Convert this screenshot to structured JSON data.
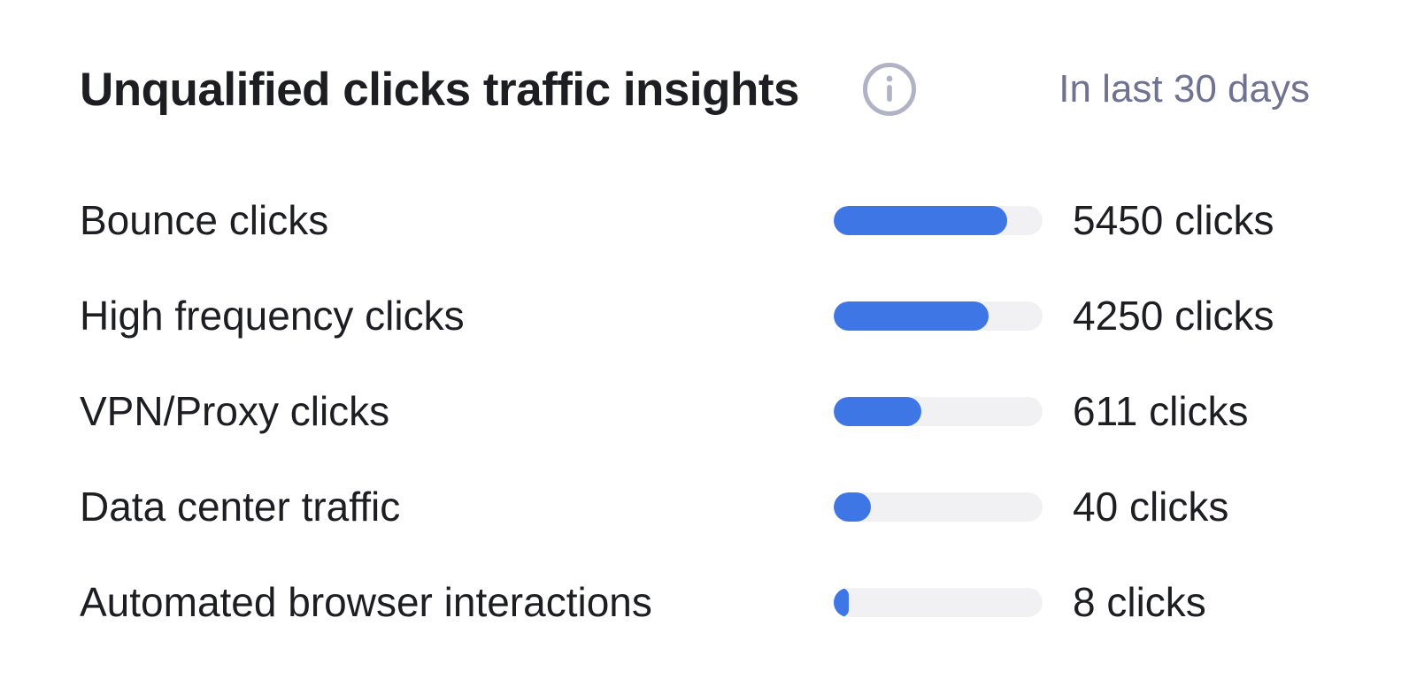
{
  "header": {
    "title": "Unqualified clicks traffic insights",
    "period": "In last 30 days",
    "info_icon": "info-icon"
  },
  "colors": {
    "bar_fill": "#3f76e5",
    "bar_track": "#f1f1f4",
    "muted_text": "#6f7291",
    "icon_gray": "#b0b3c6"
  },
  "rows": [
    {
      "label": "Bounce clicks",
      "value": "5450 clicks",
      "fill_fraction": 0.83
    },
    {
      "label": "High frequency clicks",
      "value": "4250 clicks",
      "fill_fraction": 0.74
    },
    {
      "label": "VPN/Proxy clicks",
      "value": "611 clicks",
      "fill_fraction": 0.42
    },
    {
      "label": "Data center traffic",
      "value": "40 clicks",
      "fill_fraction": 0.18
    },
    {
      "label": "Automated browser interactions",
      "value": "8 clicks",
      "fill_fraction": 0.07
    }
  ]
}
